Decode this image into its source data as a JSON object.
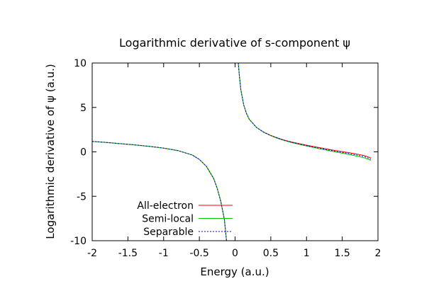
{
  "chart_data": {
    "type": "line",
    "title": "Logarithmic derivative of s-component ψ",
    "xlabel": "Energy (a.u.)",
    "ylabel": "Logarithmic derivative of ψ (a.u.)",
    "xlim": [
      -2,
      2
    ],
    "ylim": [
      -10,
      10
    ],
    "xticks": [
      -2,
      -1.5,
      -1,
      -0.5,
      0,
      0.5,
      1,
      1.5,
      2
    ],
    "xtick_labels": [
      "-2",
      "-1.5",
      "-1",
      "-0.5",
      "0",
      "0.5",
      "1",
      "1.5",
      "2"
    ],
    "yticks": [
      -10,
      -5,
      0,
      5,
      10
    ],
    "ytick_labels": [
      "-10",
      "-5",
      "0",
      "5",
      "10"
    ],
    "grid": false,
    "legend_position": "bottom-left",
    "series": [
      {
        "name": "All-electron",
        "color": "#ff0000",
        "dash": "solid",
        "segments": [
          [
            [
              -2.0,
              1.18
            ],
            [
              -1.8,
              1.06
            ],
            [
              -1.6,
              0.92
            ],
            [
              -1.4,
              0.78
            ],
            [
              -1.2,
              0.62
            ],
            [
              -1.0,
              0.42
            ],
            [
              -0.8,
              0.14
            ],
            [
              -0.6,
              -0.35
            ],
            [
              -0.5,
              -0.85
            ],
            [
              -0.4,
              -1.65
            ],
            [
              -0.3,
              -3.0
            ],
            [
              -0.25,
              -4.1
            ],
            [
              -0.2,
              -5.6
            ],
            [
              -0.15,
              -7.6
            ],
            [
              -0.12,
              -10.0
            ]
          ],
          [
            [
              0.045,
              10.0
            ],
            [
              0.06,
              8.6
            ],
            [
              0.08,
              7.0
            ],
            [
              0.12,
              5.3
            ],
            [
              0.16,
              4.3
            ],
            [
              0.2,
              3.65
            ],
            [
              0.3,
              2.75
            ],
            [
              0.4,
              2.22
            ],
            [
              0.5,
              1.85
            ],
            [
              0.6,
              1.55
            ],
            [
              0.7,
              1.3
            ],
            [
              0.8,
              1.1
            ],
            [
              1.0,
              0.75
            ],
            [
              1.2,
              0.45
            ],
            [
              1.4,
              0.15
            ],
            [
              1.6,
              -0.1
            ],
            [
              1.8,
              -0.4
            ],
            [
              1.9,
              -0.68
            ]
          ]
        ]
      },
      {
        "name": "Semi-local",
        "color": "#00cc00",
        "dash": "solid",
        "segments": [
          [
            [
              -2.0,
              1.18
            ],
            [
              -1.8,
              1.06
            ],
            [
              -1.6,
              0.92
            ],
            [
              -1.4,
              0.78
            ],
            [
              -1.2,
              0.62
            ],
            [
              -1.0,
              0.42
            ],
            [
              -0.8,
              0.14
            ],
            [
              -0.6,
              -0.35
            ],
            [
              -0.5,
              -0.85
            ],
            [
              -0.4,
              -1.65
            ],
            [
              -0.3,
              -3.0
            ],
            [
              -0.25,
              -4.1
            ],
            [
              -0.2,
              -5.6
            ],
            [
              -0.15,
              -7.6
            ],
            [
              -0.12,
              -10.0
            ]
          ],
          [
            [
              0.045,
              10.0
            ],
            [
              0.06,
              8.6
            ],
            [
              0.08,
              7.0
            ],
            [
              0.12,
              5.3
            ],
            [
              0.16,
              4.3
            ],
            [
              0.2,
              3.65
            ],
            [
              0.3,
              2.75
            ],
            [
              0.4,
              2.2
            ],
            [
              0.5,
              1.82
            ],
            [
              0.6,
              1.5
            ],
            [
              0.7,
              1.25
            ],
            [
              0.8,
              1.03
            ],
            [
              1.0,
              0.65
            ],
            [
              1.2,
              0.32
            ],
            [
              1.4,
              0.0
            ],
            [
              1.6,
              -0.3
            ],
            [
              1.8,
              -0.65
            ],
            [
              1.9,
              -0.95
            ]
          ]
        ]
      },
      {
        "name": "Separable",
        "color": "#0000dd",
        "dash": "dotted",
        "segments": [
          [
            [
              -2.0,
              1.18
            ],
            [
              -1.8,
              1.06
            ],
            [
              -1.6,
              0.92
            ],
            [
              -1.4,
              0.78
            ],
            [
              -1.2,
              0.62
            ],
            [
              -1.0,
              0.42
            ],
            [
              -0.8,
              0.14
            ],
            [
              -0.6,
              -0.35
            ],
            [
              -0.5,
              -0.85
            ],
            [
              -0.4,
              -1.65
            ],
            [
              -0.3,
              -3.0
            ],
            [
              -0.25,
              -4.1
            ],
            [
              -0.2,
              -5.6
            ],
            [
              -0.15,
              -7.6
            ],
            [
              -0.12,
              -10.0
            ]
          ],
          [
            [
              0.045,
              10.0
            ],
            [
              0.06,
              8.6
            ],
            [
              0.08,
              7.0
            ],
            [
              0.12,
              5.3
            ],
            [
              0.16,
              4.3
            ],
            [
              0.2,
              3.65
            ],
            [
              0.3,
              2.75
            ],
            [
              0.4,
              2.21
            ],
            [
              0.5,
              1.83
            ],
            [
              0.6,
              1.52
            ],
            [
              0.7,
              1.27
            ],
            [
              0.8,
              1.06
            ],
            [
              1.0,
              0.7
            ],
            [
              1.2,
              0.38
            ],
            [
              1.4,
              0.07
            ],
            [
              1.6,
              -0.2
            ],
            [
              1.8,
              -0.52
            ],
            [
              1.9,
              -0.82
            ]
          ]
        ]
      }
    ]
  }
}
